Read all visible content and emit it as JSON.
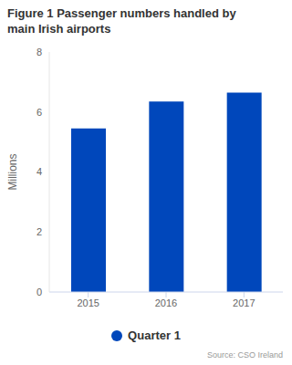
{
  "chart_data": {
    "type": "bar",
    "title": "Figure 1 Passenger numbers handled by main Irish airports",
    "y_label": "Millions",
    "categories": [
      "2015",
      "2016",
      "2017"
    ],
    "series": [
      {
        "name": "Quarter 1",
        "color": "#0047bb",
        "values": [
          5.45,
          6.35,
          6.65
        ]
      }
    ],
    "ylim": [
      0,
      8
    ],
    "yticks": [
      0,
      2,
      4,
      6,
      8
    ],
    "grid": false,
    "legend": "bottom",
    "source": "Source: CSO Ireland"
  }
}
